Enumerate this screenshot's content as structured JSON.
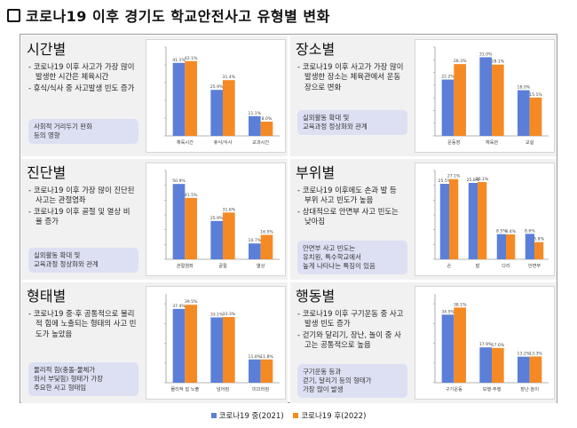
{
  "title": "코로나19 이후 경기도 학교안전사고 유형별 변화",
  "colors": {
    "before": "#5b7fd8",
    "after": "#f58a25"
  },
  "legend": {
    "before": "코로나19 중(2021)",
    "after": "코로나19 후(2022)"
  },
  "panels": [
    {
      "key": "time",
      "title": "시간별",
      "bullets": [
        "코로나19 이후 사고가 가장 많이 발생한 시간은 체육시간",
        "휴식/식사 중 사고발생 빈도 증가"
      ],
      "note": [
        "사회적 거리두기 완화",
        "등의 영향"
      ],
      "note_highlight": ""
    },
    {
      "key": "place",
      "title": "장소별",
      "bullets": [
        "코로나19 이후 사고가 가장 많이 발생한 장소는 체육관에서 운동장으로 변화"
      ],
      "note": [
        "실외활동 확대 및",
        "교육과정 정상화와 관계"
      ],
      "note_highlight": ""
    },
    {
      "key": "diagnosis",
      "title": "진단별",
      "bullets": [
        "코로나19 이후 가장 많이 진단된 사고는 관절염좌",
        "코로나19 이후 골절 및 열상 비율 증가"
      ],
      "note": [
        "실외활동 확대 및",
        "교육과정 정상화와 관계"
      ],
      "note_highlight": ""
    },
    {
      "key": "bodypart",
      "title": "부위별",
      "bullets": [
        "코로나19 이후에도 손과 발 등 부위 사고 빈도가 높음",
        "상대적으로 안면부 사고 빈도는 낮아짐"
      ],
      "note": [
        "안면부 사고 빈도는",
        "유치원, 특수학교에서",
        "높게 나타나는 특징이 있음"
      ],
      "note_highlight": "높음"
    },
    {
      "key": "form",
      "title": "형태별",
      "bullets": [
        "코로나19 중·후 공통적으로 물리적 힘에 노출되는 형태의 사고 빈도가 높았음"
      ],
      "note": [
        "물리적 힘(충돌-물체가",
        "와서 부딪힘) 형태가 가장",
        "주요한 사고 형태임"
      ],
      "note_highlight": ""
    },
    {
      "key": "behavior",
      "title": "행동별",
      "bullets": [
        "코로나19 이후 구기운동 중 사고 발생 빈도 증가",
        "걷기와 달리기, 장난, 놀이 중 사고는 공통적으로 높음"
      ],
      "note": [
        "구기운동 등과",
        "걷기, 달리기 등의 형태가",
        "가장 많이 발생"
      ],
      "note_highlight": ""
    }
  ],
  "chart_data": [
    {
      "type": "bar",
      "key": "time",
      "categories": [
        "체육시간",
        "휴식/식사",
        "교과시간"
      ],
      "series": [
        {
          "values": [
            41.1,
            25.9,
            11.1
          ]
        },
        {
          "values": [
            42.1,
            31.4,
            8.0
          ]
        }
      ],
      "value_labels": [
        [
          "41.1%",
          "25.9%",
          "11.1%"
        ],
        [
          "42.1%",
          "31.4%",
          "8.0%"
        ]
      ],
      "ylim": [
        0,
        50
      ]
    },
    {
      "type": "bar",
      "key": "place",
      "categories": [
        "운동장",
        "체육관",
        "교실"
      ],
      "series": [
        {
          "values": [
            22.2,
            31.0,
            18.0
          ]
        },
        {
          "values": [
            28.3,
            28.1,
            15.1
          ]
        }
      ],
      "value_labels": [
        [
          "22.2%",
          "31.0%",
          "18.0%"
        ],
        [
          "28.3%",
          "28.1%",
          "15.1%"
        ]
      ],
      "ylim": [
        0,
        35
      ]
    },
    {
      "type": "bar",
      "key": "diagnosis",
      "categories": [
        "관절염좌",
        "골절",
        "열상"
      ],
      "series": [
        {
          "values": [
            50.9,
            25.9,
            10.7
          ]
        },
        {
          "values": [
            41.5,
            31.6,
            16.5
          ]
        }
      ],
      "value_labels": [
        [
          "50.9%",
          "25.9%",
          "10.7%"
        ],
        [
          "41.5%",
          "31.6%",
          "16.5%"
        ]
      ],
      "ylim": [
        0,
        60
      ]
    },
    {
      "type": "bar",
      "key": "bodypart",
      "categories": [
        "손",
        "발",
        "다리",
        "안면부"
      ],
      "series": [
        {
          "values": [
            25.5,
            25.8,
            8.5,
            8.6
          ]
        },
        {
          "values": [
            27.1,
            26.1,
            8.4,
            5.8
          ]
        }
      ],
      "value_labels": [
        [
          "25.5%",
          "25.8%",
          "8.5%",
          "8.6%"
        ],
        [
          "27.1%",
          "26.1%",
          "8.4%",
          "5.8%"
        ]
      ],
      "ylim": [
        0,
        30
      ]
    },
    {
      "type": "bar",
      "key": "form",
      "categories": [
        "물리적 힘 노출",
        "넘어짐",
        "미끄러짐"
      ],
      "series": [
        {
          "values": [
            37.4,
            33.1,
            11.8
          ]
        },
        {
          "values": [
            39.5,
            33.3,
            11.8
          ]
        }
      ],
      "value_labels": [
        [
          "37.4%",
          "33.1%",
          "11.8%"
        ],
        [
          "39.5%",
          "33.3%",
          "11.8%"
        ]
      ],
      "ylim": [
        0,
        45
      ]
    },
    {
      "type": "bar",
      "key": "behavior",
      "categories": [
        "구기운동",
        "보행·주행",
        "장난·놀이"
      ],
      "series": [
        {
          "values": [
            34.5,
            17.9,
            13.2
          ]
        },
        {
          "values": [
            38.1,
            17.6,
            13.3
          ]
        }
      ],
      "value_labels": [
        [
          "34.5%",
          "17.9%",
          "13.2%"
        ],
        [
          "38.1%",
          "17.6%",
          "13.3%"
        ]
      ],
      "ylim": [
        0,
        45
      ]
    }
  ]
}
